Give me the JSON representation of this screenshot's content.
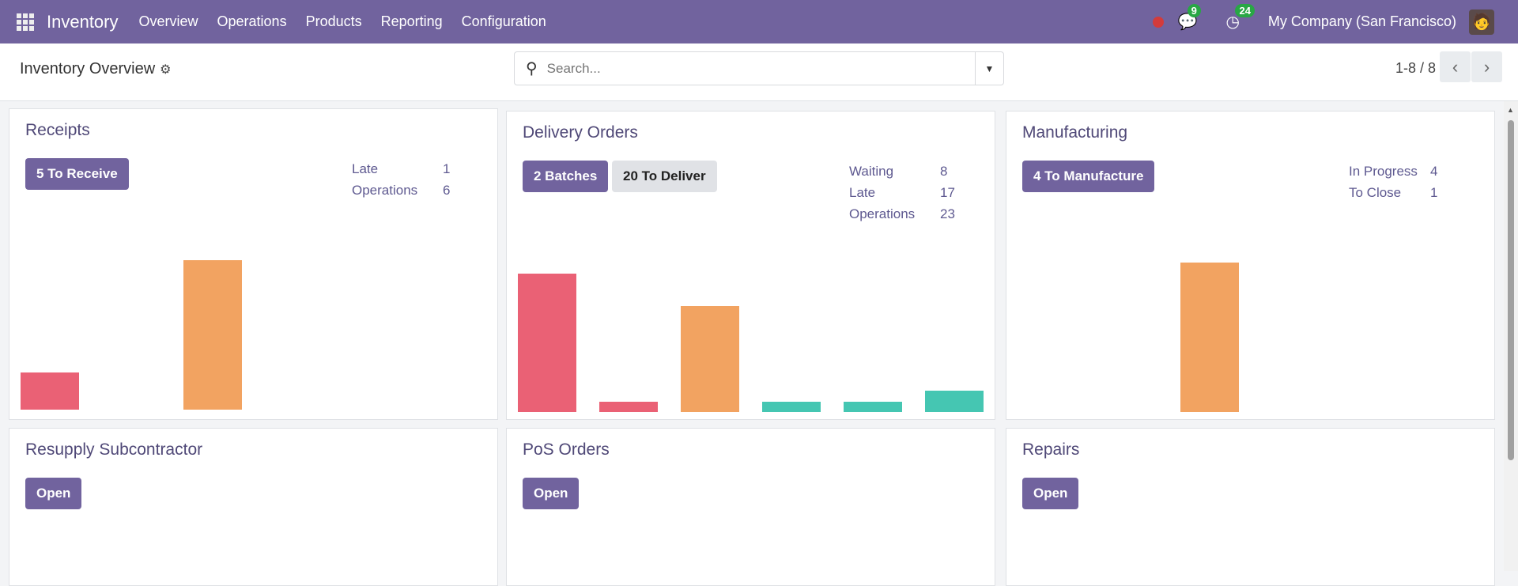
{
  "navbar": {
    "app": "Inventory",
    "menus": [
      "Overview",
      "Operations",
      "Products",
      "Reporting",
      "Configuration"
    ],
    "messages_count": "9",
    "activities_count": "24",
    "company": "My Company (San Francisco)",
    "brand_color": "#71639e"
  },
  "control_panel": {
    "title": "Inventory Overview",
    "search_placeholder": "Search...",
    "pager": "1-8 / 8"
  },
  "cards": [
    {
      "title": "Receipts",
      "buttons": [
        "5 To Receive"
      ],
      "stats": [
        {
          "label": "Late",
          "value": "1"
        },
        {
          "label": "Operations",
          "value": "6"
        }
      ]
    },
    {
      "title": "Delivery Orders",
      "buttons": [
        "2 Batches",
        "20 To Deliver"
      ],
      "stats": [
        {
          "label": "Waiting",
          "value": "8"
        },
        {
          "label": "Late",
          "value": "17"
        },
        {
          "label": "Operations",
          "value": "23"
        }
      ]
    },
    {
      "title": "Manufacturing",
      "buttons": [
        "4 To Manufacture"
      ],
      "stats": [
        {
          "label": "In Progress",
          "value": "4"
        },
        {
          "label": "To Close",
          "value": "1"
        }
      ]
    },
    {
      "title": "Resupply Subcontractor",
      "buttons": [
        "Open"
      ]
    },
    {
      "title": "PoS Orders",
      "buttons": [
        "Open"
      ]
    },
    {
      "title": "Repairs",
      "buttons": [
        "Open"
      ]
    }
  ],
  "chart_data": [
    {
      "type": "bar",
      "card": "Receipts",
      "values": [
        1,
        0,
        4,
        0,
        0,
        0
      ],
      "colors": [
        "#ea6175",
        "#ea6175",
        "#f2a361",
        "#45c6b2",
        "#45c6b2",
        "#45c6b2"
      ]
    },
    {
      "type": "bar",
      "card": "Delivery Orders",
      "values": [
        13.8,
        1,
        10.6,
        1,
        1,
        2.1
      ],
      "colors": [
        "#ea6175",
        "#ea6175",
        "#f2a361",
        "#45c6b2",
        "#45c6b2",
        "#45c6b2"
      ]
    },
    {
      "type": "bar",
      "card": "Manufacturing",
      "values": [
        0,
        0,
        1,
        0,
        0,
        0
      ],
      "colors": [
        "#ea6175",
        "#ea6175",
        "#f2a361",
        "#45c6b2",
        "#45c6b2",
        "#45c6b2"
      ]
    }
  ]
}
